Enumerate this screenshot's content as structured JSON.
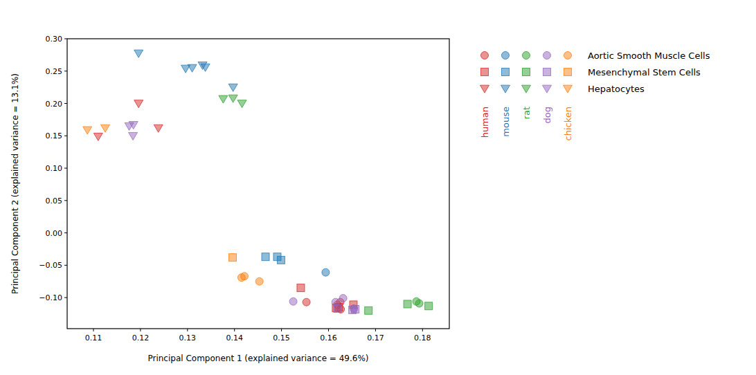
{
  "chart_data": {
    "type": "scatter",
    "x_label": "Principal Component 1 (explained variance = 49.6%)",
    "y_label": "Principal Component 2 (explained variance = 13.1%)",
    "xlim": [
      0.1044,
      0.1857
    ],
    "ylim": [
      -0.148,
      0.3
    ],
    "xticks": [
      0.11,
      0.12,
      0.13,
      0.14,
      0.15,
      0.16,
      0.17,
      0.18
    ],
    "yticks": [
      {
        "value": 0.3,
        "label": "0.30"
      },
      0.25,
      {
        "value": 0.2,
        "label": "0.20"
      },
      0.15,
      {
        "value": 0.1,
        "label": "0.10"
      },
      0.05,
      {
        "value": 0,
        "label": "0.00"
      },
      {
        "value": -0.05,
        "label": "−0.05"
      },
      {
        "value": -0.1,
        "label": "−0.10"
      }
    ],
    "grid": false,
    "legend": "outside-right",
    "cell_types": [
      {
        "name": "Aortic Smooth Muscle Cells",
        "marker": "circle"
      },
      {
        "name": "Mesenchymal Stem Cells",
        "marker": "square"
      },
      {
        "name": "Hepatocytes",
        "marker": "triangle_down"
      }
    ],
    "series": [
      {
        "name": "human",
        "color": "#d62728",
        "groups": [
          {
            "x": [
              0.1553,
              0.1625,
              0.1626,
              0.1619
            ],
            "values": [
              -0.107,
              -0.107,
              -0.118,
              -0.111
            ]
          },
          {
            "x": [
              0.1541,
              0.1653,
              0.1616,
              0.1622
            ],
            "values": [
              -0.085,
              -0.111,
              -0.116,
              -0.115
            ]
          },
          {
            "x": [
              0.1196,
              0.1238,
              0.111
            ],
            "values": [
              0.2,
              0.162,
              0.149
            ]
          }
        ]
      },
      {
        "name": "mouse",
        "color": "#1f77b4",
        "groups": [
          {
            "x": [
              0.1594
            ],
            "values": [
              -0.061
            ]
          },
          {
            "x": [
              0.1466,
              0.1491,
              0.1499
            ],
            "values": [
              -0.037,
              -0.037,
              -0.042
            ]
          },
          {
            "x": [
              0.1196,
              0.1296,
              0.131,
              0.1332,
              0.1338,
              0.1397
            ],
            "values": [
              0.2775,
              0.254,
              0.255,
              0.259,
              0.256,
              0.225
            ]
          }
        ]
      },
      {
        "name": "rat",
        "color": "#2ca02c",
        "groups": [
          {
            "x": [
              0.1787,
              0.1793
            ],
            "values": [
              -0.106,
              -0.109
            ]
          },
          {
            "x": [
              0.1685,
              0.1768,
              0.1813
            ],
            "values": [
              -0.12,
              -0.11,
              -0.113
            ]
          },
          {
            "x": [
              0.1376,
              0.1397,
              0.1416
            ],
            "values": [
              0.207,
              0.208,
              0.2
            ]
          }
        ]
      },
      {
        "name": "dog",
        "color": "#9467bd",
        "groups": [
          {
            "x": [
              0.1525,
              0.1631,
              0.1615,
              0.1654
            ],
            "values": [
              -0.106,
              -0.101,
              -0.107,
              -0.117
            ]
          },
          {
            "x": [
              0.1657,
              0.1651,
              0.1619
            ],
            "values": [
              -0.118,
              -0.119,
              -0.117
            ]
          },
          {
            "x": [
              0.1176,
              0.1185,
              0.1184
            ],
            "values": [
              0.165,
              0.167,
              0.15
            ]
          }
        ]
      },
      {
        "name": "chicken",
        "color": "#ff7f0e",
        "groups": [
          {
            "x": [
              0.1415,
              0.1421,
              0.1453
            ],
            "values": [
              -0.069,
              -0.067,
              -0.075
            ]
          },
          {
            "x": [
              0.1396
            ],
            "values": [
              -0.038
            ]
          },
          {
            "x": [
              0.1087,
              0.1125
            ],
            "values": [
              0.159,
              0.162
            ]
          }
        ]
      }
    ]
  }
}
